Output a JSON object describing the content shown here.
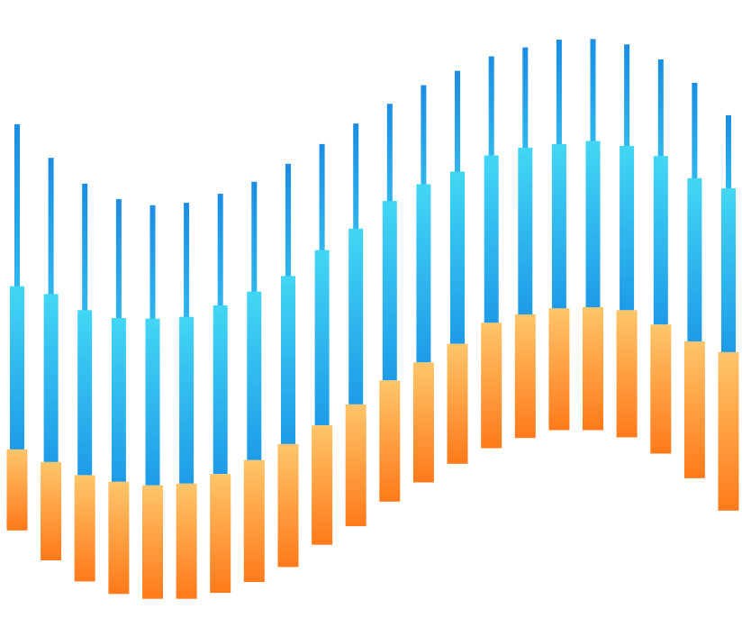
{
  "chart_data": {
    "type": "bar",
    "title": "",
    "xlabel": "",
    "ylabel": "",
    "grid": false,
    "legend": "none",
    "ylim": [
      0,
      100
    ],
    "colors": {
      "orange_top": "#ffc56a",
      "orange_bottom": "#ff7a1a",
      "blue_body_top": "#43d6f4",
      "blue_body_bottom": "#1e9be8",
      "needle_top": "#1b8de3",
      "needle_bottom": "#2fb6ee"
    },
    "bars": [
      {
        "orange_low": 14.6,
        "orange_high": 28.1,
        "blue_high": 55.3,
        "needle_high": 82.3
      },
      {
        "orange_low": 9.6,
        "orange_high": 26.0,
        "blue_high": 54.0,
        "needle_high": 76.7
      },
      {
        "orange_low": 6.1,
        "orange_high": 23.8,
        "blue_high": 51.3,
        "needle_high": 72.4
      },
      {
        "orange_low": 4.0,
        "orange_high": 22.7,
        "blue_high": 50.0,
        "needle_high": 69.8
      },
      {
        "orange_low": 3.2,
        "orange_high": 22.1,
        "blue_high": 49.9,
        "needle_high": 68.8
      },
      {
        "orange_low": 3.2,
        "orange_high": 22.4,
        "blue_high": 50.2,
        "needle_high": 69.2
      },
      {
        "orange_low": 4.2,
        "orange_high": 24.0,
        "blue_high": 52.1,
        "needle_high": 70.7
      },
      {
        "orange_low": 6.0,
        "orange_high": 26.3,
        "blue_high": 54.4,
        "needle_high": 72.7
      },
      {
        "orange_low": 8.5,
        "orange_high": 29.0,
        "blue_high": 57.0,
        "needle_high": 75.7
      },
      {
        "orange_low": 12.2,
        "orange_high": 32.1,
        "blue_high": 61.3,
        "needle_high": 79.0
      },
      {
        "orange_low": 15.3,
        "orange_high": 35.6,
        "blue_high": 64.9,
        "needle_high": 82.4
      },
      {
        "orange_low": 19.4,
        "orange_high": 39.6,
        "blue_high": 69.5,
        "needle_high": 85.7
      },
      {
        "orange_low": 22.6,
        "orange_high": 42.6,
        "blue_high": 72.3,
        "needle_high": 88.8
      },
      {
        "orange_low": 25.7,
        "orange_high": 45.7,
        "blue_high": 74.4,
        "needle_high": 91.2
      },
      {
        "orange_low": 28.3,
        "orange_high": 49.2,
        "blue_high": 77.1,
        "needle_high": 93.6
      },
      {
        "orange_low": 30.0,
        "orange_high": 50.6,
        "blue_high": 78.4,
        "needle_high": 95.1
      },
      {
        "orange_low": 31.3,
        "orange_high": 51.6,
        "blue_high": 79.0,
        "needle_high": 96.4
      },
      {
        "orange_low": 31.3,
        "orange_high": 51.8,
        "blue_high": 79.5,
        "needle_high": 96.5
      },
      {
        "orange_low": 30.1,
        "orange_high": 51.3,
        "blue_high": 78.7,
        "needle_high": 95.6
      },
      {
        "orange_low": 27.4,
        "orange_high": 48.9,
        "blue_high": 77.0,
        "needle_high": 93.1
      },
      {
        "orange_low": 23.3,
        "orange_high": 46.1,
        "blue_high": 73.3,
        "needle_high": 89.2
      },
      {
        "orange_low": 17.9,
        "orange_high": 44.3,
        "blue_high": 71.6,
        "needle_high": 83.8
      }
    ]
  }
}
